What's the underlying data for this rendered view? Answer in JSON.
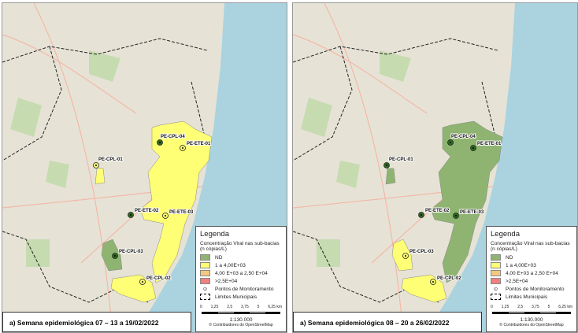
{
  "colors": {
    "nd": "#8fb471",
    "low": "#ffff75",
    "mid": "#f5c77e",
    "high": "#f08080",
    "sea": "#aad3df",
    "land": "#e6e3d6"
  },
  "legend": {
    "title": "Legenda",
    "subtitle": "Concentração Viral nas sub-bacias (n cópias/L)",
    "items": [
      {
        "label": "ND",
        "color": "#8fb471"
      },
      {
        "label": "1 a 4,00E+03",
        "color": "#ffff75"
      },
      {
        "label": "4,00 E+03 a 2,50 E+04",
        "color": "#f5c77e"
      },
      {
        "label": ">2,5E+04",
        "color": "#f08080"
      }
    ],
    "points_label": "Pontos de Monitoramento",
    "limits_label": "Limites Municipais",
    "scale_ticks": [
      "0",
      "1,25",
      "2,5",
      "3,75",
      "5",
      "6,25 km"
    ],
    "scale_ratio": "1:130.000",
    "attribution": "© Contribuidores do OpenStreetMap"
  },
  "panels": [
    {
      "caption": "a) Semana epidemiológica 07 – 13 a 19/02/2022",
      "main_area": "low",
      "cpl03_area": "nd",
      "cpl02_area": "low",
      "stations": [
        {
          "name": "PE-CPL-04",
          "class": "nd"
        },
        {
          "name": "PE-ETE-01",
          "class": "low"
        },
        {
          "name": "PE-CPL-01",
          "class": "low"
        },
        {
          "name": "PE-ETE-02",
          "class": "nd"
        },
        {
          "name": "PE-ETE-03",
          "class": "low"
        },
        {
          "name": "PE-CPL-03",
          "class": "nd"
        },
        {
          "name": "PE-CPL-02",
          "class": "low"
        }
      ]
    },
    {
      "caption": "a) Semana epidemiológica 08 – 20 a 26/02/2022",
      "main_area": "nd",
      "cpl03_area": "low",
      "cpl02_area": "low",
      "stations": [
        {
          "name": "PE-CPL-04",
          "class": "nd"
        },
        {
          "name": "PE-ETE-01",
          "class": "nd"
        },
        {
          "name": "PE-CPL-01",
          "class": "nd"
        },
        {
          "name": "PE-ETE-02",
          "class": "nd"
        },
        {
          "name": "PE-ETE-03",
          "class": "nd"
        },
        {
          "name": "PE-CPL-03",
          "class": "low"
        },
        {
          "name": "PE-CPL-02",
          "class": "low"
        }
      ]
    }
  ]
}
